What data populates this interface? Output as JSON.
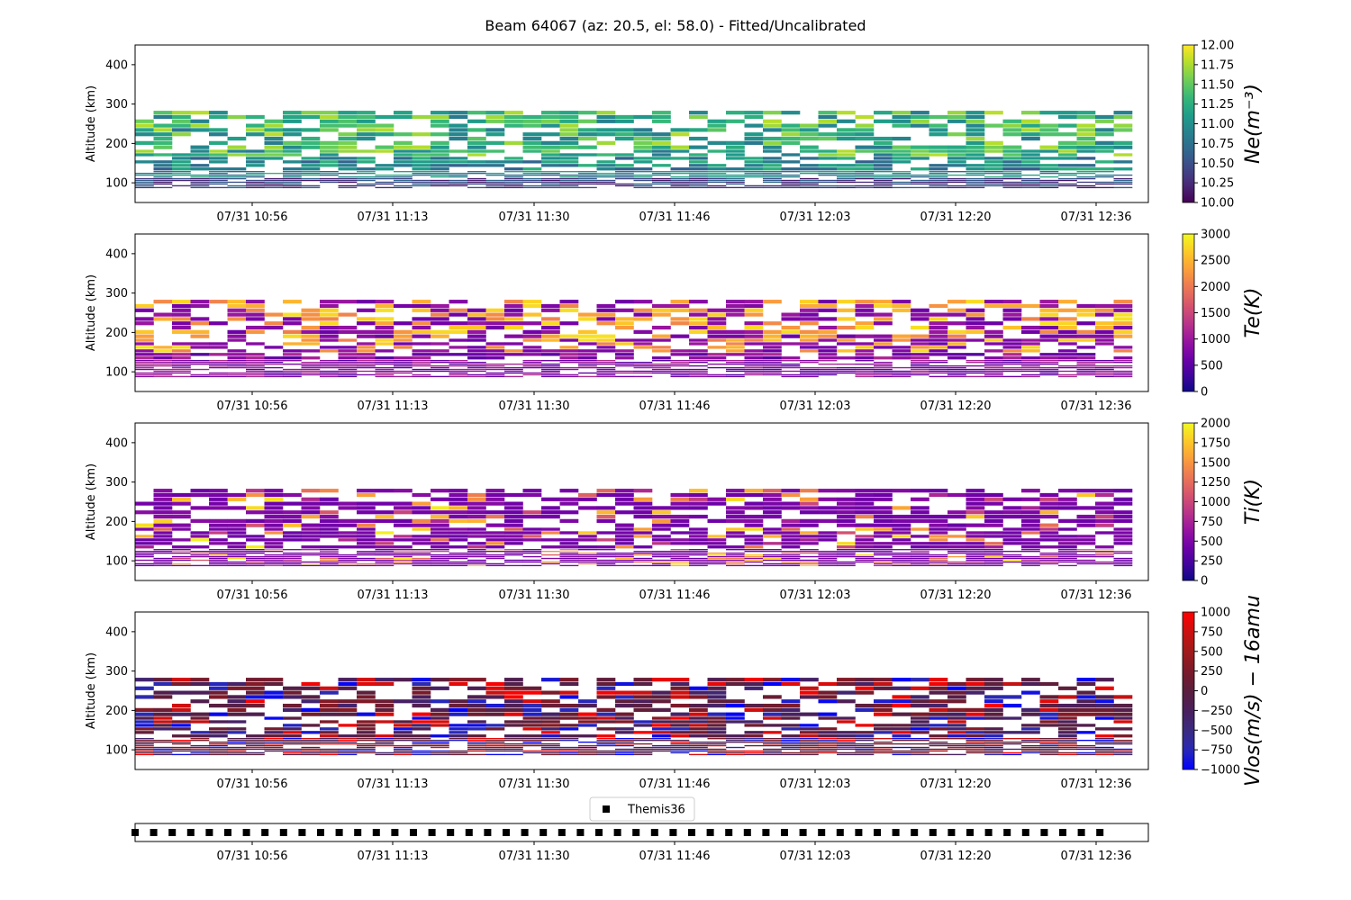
{
  "figure": {
    "title": "Beam 64067 (az: 20.5, el: 58.0) - Fitted/Uncalibrated"
  },
  "chart_data": [
    {
      "type": "heatmap",
      "id": "ne",
      "ylabel": "Altitude (km)",
      "ylim": [
        50,
        450
      ],
      "yticks": [
        100,
        200,
        300,
        400
      ],
      "xticklabels": [
        "07/31 10:56",
        "07/31 11:13",
        "07/31 11:30",
        "07/31 11:46",
        "07/31 12:03",
        "07/31 12:20",
        "07/31 12:36"
      ],
      "colorbar": {
        "label": "Ne(m⁻³)",
        "colormap": "viridis",
        "range": [
          10.0,
          12.0
        ],
        "ticks": [
          "10.00",
          "10.25",
          "10.50",
          "10.75",
          "11.00",
          "11.25",
          "11.50",
          "11.75",
          "12.00"
        ]
      },
      "data_extent_altitude_km": [
        85,
        290
      ],
      "typical_value": 11.0
    },
    {
      "type": "heatmap",
      "id": "te",
      "ylabel": "Altitude (km)",
      "ylim": [
        50,
        450
      ],
      "yticks": [
        100,
        200,
        300,
        400
      ],
      "xticklabels": [
        "07/31 10:56",
        "07/31 11:13",
        "07/31 11:30",
        "07/31 11:46",
        "07/31 12:03",
        "07/31 12:20",
        "07/31 12:36"
      ],
      "colorbar": {
        "label": "Te(K)",
        "colormap": "plasma",
        "range": [
          0,
          3000
        ],
        "ticks": [
          "0",
          "500",
          "1000",
          "1500",
          "2000",
          "2500",
          "3000"
        ]
      },
      "data_extent_altitude_km": [
        80,
        290
      ],
      "typical_value": 1000
    },
    {
      "type": "heatmap",
      "id": "ti",
      "ylabel": "Altitude (km)",
      "ylim": [
        50,
        450
      ],
      "yticks": [
        100,
        200,
        300,
        400
      ],
      "xticklabels": [
        "07/31 10:56",
        "07/31 11:13",
        "07/31 11:30",
        "07/31 11:46",
        "07/31 12:03",
        "07/31 12:20",
        "07/31 12:36"
      ],
      "colorbar": {
        "label": "Ti(K)",
        "colormap": "plasma",
        "range": [
          0,
          2000
        ],
        "ticks": [
          "0",
          "250",
          "500",
          "750",
          "1000",
          "1250",
          "1500",
          "1750",
          "2000"
        ]
      },
      "data_extent_altitude_km": [
        85,
        290
      ],
      "typical_value": 600
    },
    {
      "type": "heatmap",
      "id": "vlos",
      "ylabel": "Altitude (km)",
      "ylim": [
        50,
        450
      ],
      "yticks": [
        100,
        200,
        300,
        400
      ],
      "xticklabels": [
        "07/31 10:56",
        "07/31 11:13",
        "07/31 11:30",
        "07/31 11:46",
        "07/31 12:03",
        "07/31 12:20",
        "07/31 12:36"
      ],
      "colorbar": {
        "label": "Vlos(m/s) − 16amu",
        "colormap": "bwr-dark",
        "range": [
          -1000,
          1000
        ],
        "ticks": [
          "−1000",
          "−750",
          "−500",
          "−250",
          "0",
          "250",
          "500",
          "750",
          "1000"
        ]
      },
      "data_extent_altitude_km": [
        85,
        290
      ],
      "typical_value": 0
    },
    {
      "type": "scatter",
      "id": "themis",
      "legend": "Themis36",
      "marker": "square",
      "xticklabels": [
        "07/31 10:56",
        "07/31 11:13",
        "07/31 11:30",
        "07/31 11:46",
        "07/31 12:03",
        "07/31 12:20",
        "07/31 12:36"
      ],
      "time_range": [
        "07/31 10:42",
        "07/31 12:38"
      ],
      "interval_minutes": 2
    }
  ]
}
